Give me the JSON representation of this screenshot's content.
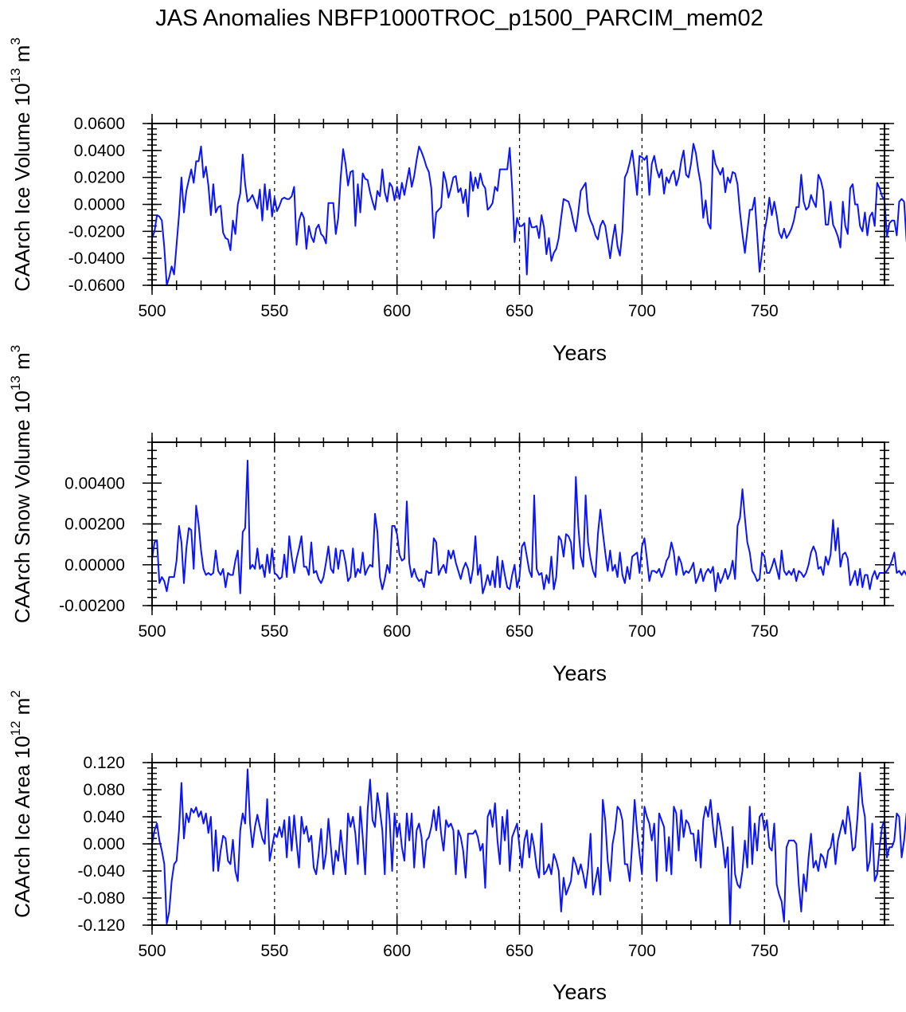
{
  "title": "JAS Anomalies NBFP1000TROC_p1500_PARCIM_mem02",
  "series_color": "#0a14ff",
  "chart_data": [
    {
      "type": "line",
      "ylabel": "CAArch Ice Volume 10^13 m^3",
      "ylabel_main": "CAArch Ice Volume 10",
      "ylabel_exp": "13",
      "ylabel_unit": " m",
      "ylabel_unit_exp": "3",
      "xlabel": "Years",
      "xlim": [
        500,
        799
      ],
      "ylim": [
        -0.06,
        0.06
      ],
      "xticks": [
        500,
        550,
        600,
        650,
        700,
        750
      ],
      "xtick_labels": [
        "500",
        "550",
        "600",
        "650",
        "700",
        "750"
      ],
      "yticks": [
        -0.06,
        -0.04,
        -0.02,
        0.0,
        0.02,
        0.04,
        0.06
      ],
      "ytick_labels": [
        "-0.0600",
        "-0.0400",
        "-0.0200",
        "0.0000",
        "0.0200",
        "0.0400",
        "0.0600"
      ],
      "reference_lines_x": [
        550,
        600,
        650,
        700,
        750
      ],
      "x_start": 500,
      "values": [
        -0.025,
        -0.02,
        -0.008,
        -0.009,
        -0.012,
        -0.032,
        -0.06,
        -0.054,
        -0.046,
        -0.052,
        -0.03,
        -0.008,
        0.02,
        -0.006,
        0.01,
        0.018,
        0.026,
        0.016,
        0.032,
        0.032,
        0.043,
        0.02,
        0.028,
        0.014,
        -0.008,
        0.015,
        -0.006,
        -0.002,
        -0.001,
        -0.021,
        -0.025,
        -0.026,
        -0.034,
        -0.012,
        -0.022,
        0.0,
        0.008,
        0.037,
        0.015,
        0.002,
        0.004,
        0.007,
        0.002,
        -0.003,
        0.011,
        -0.012,
        0.015,
        -0.004,
        0.011,
        -0.009,
        0.005,
        -0.005,
        -0.001,
        0.004,
        0.005,
        0.004,
        0.004,
        0.006,
        0.013,
        -0.03,
        -0.012,
        -0.006,
        -0.01,
        -0.033,
        -0.016,
        -0.024,
        -0.028,
        -0.018,
        -0.015,
        -0.022,
        -0.024,
        -0.029,
        0.001,
        0.001,
        0.001,
        -0.022,
        -0.01,
        0.02,
        0.041,
        0.03,
        0.014,
        0.024,
        0.025,
        -0.016,
        0.015,
        -0.006,
        0.023,
        0.019,
        0.018,
        0.009,
        0.002,
        -0.004,
        0.01,
        0.006,
        0.026,
        0.009,
        0.002,
        0.016,
        0.013,
        0.003,
        0.013,
        0.004,
        0.016,
        0.007,
        0.017,
        0.027,
        0.013,
        0.021,
        0.033,
        0.043,
        0.039,
        0.034,
        0.028,
        0.024,
        0.012,
        -0.025,
        -0.006,
        -0.004,
        -0.002,
        0.024,
        0.017,
        0.005,
        0.012,
        0.02,
        0.021,
        0.009,
        0.012,
        0.001,
        0.011,
        -0.009,
        0.024,
        0.01,
        0.02,
        0.012,
        0.023,
        0.015,
        0.012,
        -0.004,
        -0.002,
        0.001,
        0.013,
        0.01,
        0.026,
        0.026,
        0.026,
        0.026,
        0.042,
        0.012,
        -0.028,
        -0.01,
        -0.016,
        -0.016,
        -0.014,
        -0.052,
        -0.01,
        -0.017,
        -0.017,
        -0.016,
        -0.025,
        -0.008,
        -0.017,
        -0.037,
        -0.025,
        -0.042,
        -0.036,
        -0.033,
        -0.025,
        -0.01,
        0.004,
        0.003,
        0.002,
        -0.004,
        -0.013,
        -0.02,
        -0.006,
        0.01,
        0.013,
        0.016,
        -0.006,
        -0.012,
        -0.016,
        -0.023,
        -0.026,
        -0.016,
        -0.012,
        -0.016,
        -0.028,
        -0.04,
        -0.026,
        -0.015,
        -0.031,
        -0.038,
        -0.02,
        0.02,
        0.024,
        0.031,
        0.04,
        0.025,
        0.007,
        0.036,
        0.035,
        0.033,
        0.036,
        0.007,
        0.03,
        0.036,
        0.026,
        0.02,
        0.026,
        0.008,
        0.02,
        0.016,
        0.022,
        0.025,
        0.014,
        0.02,
        0.032,
        0.04,
        0.022,
        0.02,
        0.03,
        0.045,
        0.038,
        0.025,
        0.015,
        -0.01,
        0.003,
        -0.014,
        -0.018,
        0.04,
        0.03,
        0.026,
        0.022,
        0.027,
        0.009,
        0.02,
        0.016,
        0.024,
        0.023,
        0.015,
        -0.006,
        -0.022,
        -0.036,
        -0.02,
        -0.004,
        -0.004,
        0.005,
        -0.022,
        -0.05,
        -0.036,
        -0.02,
        -0.01,
        0.005,
        -0.008,
        0.002,
        -0.008,
        -0.021,
        -0.025,
        -0.018,
        -0.025,
        -0.022,
        -0.018,
        -0.012,
        -0.002,
        -0.002,
        0.022,
        0.002,
        -0.004,
        -0.002,
        0.007,
        0.002,
        -0.002,
        0.022,
        0.018,
        0.01,
        -0.015,
        -0.015,
        0.002,
        -0.015,
        -0.019,
        -0.024,
        -0.032,
        0.002,
        -0.016,
        -0.022,
        0.012,
        0.015,
        0.0,
        0.0,
        -0.016,
        -0.02,
        -0.006,
        -0.023,
        -0.009,
        -0.006,
        -0.016,
        0.016,
        0.012,
        0.006,
        0.003,
        -0.024,
        -0.014,
        -0.012,
        -0.012,
        -0.023,
        0.002,
        0.004,
        0.002,
        -0.027,
        -0.038,
        -0.043,
        -0.022,
        -0.017,
        -0.023,
        -0.008,
        -0.004,
        -0.01,
        -0.005,
        0.009,
        0.004,
        0.012,
        -0.006,
        -0.016,
        -0.03,
        -0.005,
        -0.003,
        -0.02,
        -0.005,
        -0.003,
        -0.01,
        -0.015
      ]
    },
    {
      "type": "line",
      "ylabel": "CAArch Snow Volume 10^13 m^3",
      "ylabel_main": "CAArch Snow Volume 10",
      "ylabel_exp": "13",
      "ylabel_unit": " m",
      "ylabel_unit_exp": "3",
      "xlabel": "Years",
      "xlim": [
        500,
        799
      ],
      "ylim": [
        -0.002,
        0.006
      ],
      "xticks": [
        500,
        550,
        600,
        650,
        700,
        750
      ],
      "xtick_labels": [
        "500",
        "550",
        "600",
        "650",
        "700",
        "750"
      ],
      "yticks": [
        -0.002,
        0.0,
        0.002,
        0.004
      ],
      "ytick_labels": [
        "-0.00200",
        "0.00000",
        "0.00200",
        "0.00400"
      ],
      "reference_lines_x": [
        550,
        600,
        650,
        700,
        750
      ],
      "x_start": 500,
      "values": [
        0.0003,
        0.0011,
        0.0012,
        -0.0009,
        -0.0006,
        -0.0008,
        -0.0013,
        -0.0006,
        -0.0006,
        -0.0006,
        0.0002,
        0.0019,
        0.0011,
        -0.0009,
        0.0008,
        0.0018,
        0.0017,
        -0.0002,
        0.0029,
        0.002,
        0.0007,
        -0.0002,
        -0.0005,
        -0.0004,
        -0.0005,
        -0.0004,
        0.0007,
        -0.0003,
        -0.0005,
        -0.0002,
        -0.0011,
        -0.0004,
        -0.0005,
        -0.0005,
        0.0002,
        0.0007,
        -0.0014,
        0.0016,
        0.0018,
        0.0051,
        -0.0002,
        0.0,
        -0.0002,
        0.0008,
        -0.0002,
        0.0,
        -0.0006,
        0.0005,
        -0.0004,
        0.0008,
        -0.0004,
        -0.0005,
        -0.0007,
        -0.0006,
        0.0005,
        -0.0006,
        0.0014,
        0.0004,
        -0.0004,
        0.0003,
        0.0008,
        0.0014,
        -0.0001,
        -0.0001,
        -0.0005,
        0.0011,
        -0.0004,
        -0.0003,
        -0.0007,
        -0.0009,
        -0.0006,
        0.0001,
        0.0009,
        -0.0002,
        -0.0004,
        0.0008,
        -0.0002,
        0.0007,
        0.0007,
        0.0001,
        -0.0008,
        -0.0006,
        0.0008,
        -0.0006,
        -0.0002,
        -0.0004,
        0.0006,
        -0.0005,
        -0.0002,
        0.0,
        -0.0001,
        0.0025,
        0.0016,
        -0.0006,
        -0.0012,
        -0.0007,
        0.0,
        -0.0004,
        0.0019,
        0.0019,
        0.0015,
        0.0005,
        0.0002,
        0.0003,
        0.0031,
        0.0001,
        -0.0006,
        -0.0002,
        -0.0006,
        -0.0008,
        -0.0007,
        -0.0011,
        -0.0003,
        -0.0004,
        -0.0004,
        0.0013,
        0.0011,
        -0.0005,
        -0.0002,
        0.0,
        -0.0004,
        0.0007,
        0.0003,
        0.0007,
        0.0001,
        -0.0003,
        -0.0007,
        -0.0002,
        0.0001,
        -0.0002,
        -0.0009,
        -0.0002,
        0.0014,
        -0.0005,
        0.0,
        -0.0014,
        -0.001,
        -0.0005,
        -0.001,
        -0.0003,
        -0.0011,
        0.0004,
        -0.0011,
        0.0002,
        -0.0005,
        -0.0011,
        -0.0012,
        -0.0005,
        0.0,
        -0.0011,
        -0.0006,
        0.0009,
        0.0011,
        0.0004,
        -0.0003,
        -0.0006,
        0.0034,
        -0.0002,
        -0.0005,
        -0.0004,
        -0.0012,
        -0.0005,
        -0.0009,
        0.0004,
        -0.0012,
        -0.0006,
        0.0014,
        0.0012,
        0.0004,
        0.0015,
        0.0014,
        0.0011,
        -0.0002,
        0.0043,
        0.0019,
        0.0004,
        -0.0001,
        0.0034,
        0.0011,
        0.0003,
        -0.0003,
        -0.0006,
        0.0015,
        0.0027,
        0.0016,
        0.0006,
        -0.0003,
        0.0007,
        -0.0003,
        0.0,
        -0.0006,
        0.0006,
        -0.0005,
        -0.0009,
        -0.0001,
        -0.0007,
        0.0004,
        0.0005,
        0.0006,
        -0.0004,
        0.0009,
        0.0013,
        0.0003,
        -0.0008,
        -0.0003,
        -0.0003,
        -0.0004,
        -0.0002,
        -0.0006,
        -0.0003,
        0.0002,
        0.0004,
        0.0011,
        0.0006,
        -0.0005,
        0.0004,
        0.0001,
        -0.0005,
        -0.0003,
        -0.0004,
        -0.0002,
        0.0001,
        -0.0009,
        -0.0006,
        -0.0002,
        -0.0008,
        -0.0004,
        -0.0002,
        -0.0004,
        -0.0001,
        -0.0013,
        -0.0004,
        -0.0009,
        -0.0006,
        -0.0002,
        -0.0007,
        -0.0004,
        0.0002,
        -0.0007,
        0.0019,
        0.0023,
        0.0037,
        0.0023,
        0.0011,
        0.0006,
        -0.0003,
        -0.0005,
        -0.0008,
        -0.0007,
        0.0006,
        0.0004,
        -0.0004,
        -0.0004,
        -0.0001,
        0.0003,
        -0.0002,
        -0.0007,
        0.0007,
        -0.0003,
        -0.0005,
        -0.0003,
        -0.0005,
        -0.0002,
        -0.0008,
        -0.0003,
        -0.0004,
        -0.0006,
        -0.0004,
        0.0,
        0.0006,
        0.0009,
        0.0006,
        -0.0002,
        -0.0001,
        -0.0005,
        0.0004,
        0.0,
        0.0005,
        0.0022,
        0.0007,
        0.0018,
        -0.0001,
        0.0005,
        0.0006,
        0.0003,
        -0.001,
        -0.0007,
        -0.0003,
        -0.001,
        -0.0002,
        -0.0011,
        -0.0005,
        -0.0005,
        -0.0012,
        -0.0006,
        -0.0003,
        -0.0007,
        -0.0004,
        -0.0004,
        -0.0004,
        -0.0003,
        -0.0001,
        0.0002,
        0.0006,
        -0.0004,
        -0.0003,
        -0.0005,
        -0.0003,
        -0.0005,
        -0.0012,
        -0.0003,
        -0.0002,
        -0.0009,
        0.0008,
        -0.0003,
        0.0012,
        0.0027,
        0.0002,
        -0.0015,
        -0.0014
      ]
    },
    {
      "type": "line",
      "ylabel": "CAArch Ice Area 10^12 m^2",
      "ylabel_main": "CAArch Ice Area 10",
      "ylabel_exp": "12",
      "ylabel_unit": " m",
      "ylabel_unit_exp": "2",
      "xlabel": "Years",
      "xlim": [
        500,
        799
      ],
      "ylim": [
        -0.12,
        0.12
      ],
      "xticks": [
        500,
        550,
        600,
        650,
        700,
        750
      ],
      "xtick_labels": [
        "500",
        "550",
        "600",
        "650",
        "700",
        "750"
      ],
      "yticks": [
        -0.12,
        -0.08,
        -0.04,
        0.0,
        0.04,
        0.08,
        0.12
      ],
      "ytick_labels": [
        "-0.120",
        "-0.080",
        "-0.040",
        "0.000",
        "0.040",
        "0.080",
        "0.120"
      ],
      "reference_lines_x": [
        550,
        600,
        650,
        700,
        750
      ],
      "x_start": 500,
      "values": [
        0.0,
        0.02,
        0.03,
        0.005,
        -0.01,
        -0.03,
        -0.118,
        -0.1,
        -0.055,
        -0.03,
        -0.025,
        0.02,
        0.09,
        0.008,
        0.045,
        0.032,
        0.052,
        0.046,
        0.054,
        0.04,
        0.048,
        0.03,
        0.045,
        0.016,
        0.04,
        -0.04,
        0.02,
        -0.04,
        -0.01,
        0.012,
        0.008,
        -0.025,
        -0.03,
        0.006,
        -0.04,
        -0.055,
        0.02,
        0.045,
        0.03,
        0.11,
        0.03,
        -0.005,
        0.025,
        0.043,
        0.025,
        0.008,
        0.0,
        0.066,
        -0.025,
        -0.005,
        0.015,
        0.01,
        0.025,
        0.01,
        0.035,
        -0.02,
        0.04,
        -0.01,
        0.042,
        0.002,
        -0.035,
        0.04,
        0.015,
        0.026,
        0.003,
        0.012,
        -0.035,
        -0.045,
        -0.015,
        0.022,
        -0.037,
        -0.015,
        0.037,
        -0.005,
        -0.045,
        -0.01,
        -0.025,
        0.02,
        -0.015,
        -0.045,
        0.045,
        0.025,
        0.04,
        0.015,
        -0.03,
        0.055,
        0.01,
        -0.045,
        0.05,
        0.095,
        0.035,
        0.025,
        0.075,
        0.05,
        0.02,
        -0.045,
        0.075,
        0.035,
        -0.04,
        0.045,
        0.01,
        0.03,
        -0.005,
        -0.025,
        0.045,
        0.005,
        0.045,
        -0.035,
        0.02,
        0.03,
        0.01,
        -0.035,
        0.005,
        0.01,
        0.025,
        0.05,
        0.02,
        0.055,
        0.015,
        -0.01,
        0.035,
        0.025,
        0.03,
        0.02,
        -0.045,
        0.02,
        0.01,
        -0.01,
        -0.05,
        0.015,
        0.015,
        0.015,
        0.02,
        0.01,
        -0.01,
        0.0,
        -0.065,
        0.04,
        0.05,
        0.025,
        0.06,
        0.005,
        -0.03,
        0.04,
        0.005,
        0.05,
        -0.04,
        0.01,
        0.02,
        0.03,
        -0.005,
        -0.035,
        0.005,
        0.02,
        -0.02,
        0.015,
        -0.005,
        -0.035,
        -0.05,
        0.03,
        -0.045,
        -0.04,
        -0.03,
        -0.045,
        -0.015,
        -0.025,
        -0.04,
        -0.1,
        -0.05,
        -0.075,
        -0.065,
        -0.055,
        -0.02,
        -0.03,
        -0.045,
        -0.03,
        -0.045,
        -0.065,
        -0.035,
        0.015,
        -0.075,
        -0.055,
        -0.035,
        -0.075,
        0.065,
        0.035,
        -0.025,
        -0.055,
        0.0,
        0.02,
        0.055,
        0.05,
        0.035,
        -0.03,
        -0.03,
        -0.055,
        0.0,
        0.065,
        0.02,
        -0.015,
        -0.045,
        0.055,
        0.04,
        0.03,
        0.005,
        0.03,
        -0.055,
        0.045,
        0.035,
        0.025,
        -0.04,
        0.01,
        -0.045,
        0.055,
        0.045,
        -0.01,
        0.05,
        0.01,
        0.035,
        0.03,
        0.015,
        0.015,
        -0.025,
        0.02,
        -0.035,
        0.035,
        0.055,
        0.04,
        0.065,
        0.025,
        -0.005,
        0.045,
        0.025,
        0.0,
        -0.035,
        -0.005,
        -0.12,
        0.025,
        -0.045,
        -0.06,
        -0.065,
        -0.04,
        0.005,
        -0.035,
        0.055,
        -0.03,
        0.03,
        -0.01,
        0.04,
        0.045,
        0.02,
        0.035,
        -0.005,
        -0.01,
        0.03,
        -0.06,
        -0.075,
        -0.085,
        -0.115,
        -0.005,
        0.005,
        0.005,
        0.005,
        0.0,
        -0.06,
        -0.1,
        -0.045,
        -0.07,
        -0.02,
        0.015,
        -0.035,
        -0.025,
        -0.04,
        -0.015,
        -0.02,
        -0.035,
        -0.01,
        -0.005,
        0.015,
        -0.03,
        0.005,
        0.02,
        0.035,
        0.015,
        0.055,
        0.03,
        -0.01,
        -0.005,
        0.04,
        0.105,
        0.06,
        0.04,
        -0.04,
        -0.025,
        0.03,
        -0.055,
        -0.045,
        -0.005,
        0.025,
        0.035,
        -0.02,
        -0.005,
        -0.005,
        0.005,
        0.045,
        0.04,
        -0.02,
        0.005,
        0.045,
        0.035,
        0.055,
        -0.005,
        0.005,
        -0.02,
        -0.01,
        0.0,
        -0.03,
        -0.03,
        -0.005,
        0.005,
        -0.04,
        -0.015,
        0.02,
        0.055,
        -0.015,
        0.025,
        0.025,
        0.045,
        0.025,
        0.06,
        0.025,
        -0.04,
        0.02,
        -0.035,
        -0.045,
        0.0,
        0.055,
        0.005,
        -0.055,
        -0.045,
        0.025,
        -0.04,
        -0.03,
        0.045,
        0.005,
        0.04,
        -0.015,
        -0.03,
        -0.01
      ]
    }
  ]
}
